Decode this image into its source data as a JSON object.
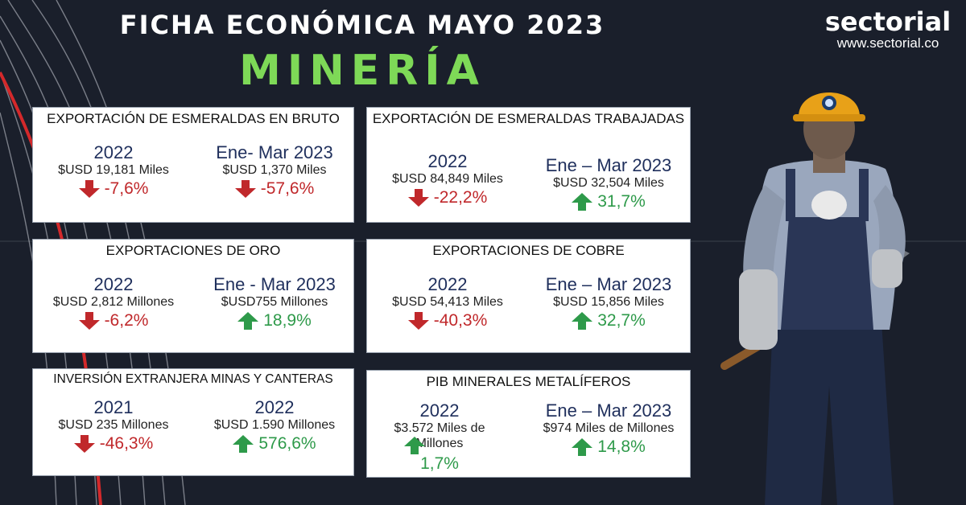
{
  "header": {
    "title": "FICHA ECONÓMICA MAYO 2023",
    "subtitle": "MINERÍA"
  },
  "logo": {
    "word": "sectorial",
    "url": "www.sectorial.co"
  },
  "colors": {
    "background": "#1a1f2b",
    "subtitle_green": "#7ed957",
    "down_red": "#c0282b",
    "up_green": "#2e9a4a",
    "year_navy": "#1f2f5c"
  },
  "cards": [
    {
      "title": "EXPORTACIÓN DE ESMERALDAS EN BRUTO",
      "left": {
        "year": "2022",
        "value": "$USD 19,181 Miles",
        "change": "-7,6%",
        "direction": "down"
      },
      "right": {
        "year": "Ene- Mar 2023",
        "value": "$USD 1,370 Miles",
        "change": "-57,6%",
        "direction": "down"
      }
    },
    {
      "title": "EXPORTACIÓN DE ESMERALDAS TRABAJADAS",
      "left": {
        "year": "2022",
        "value": "$USD 84,849 Miles",
        "change": "-22,2%",
        "direction": "down"
      },
      "right": {
        "year": "Ene – Mar 2023",
        "value": "$USD 32,504 Miles",
        "change": "31,7%",
        "direction": "up"
      }
    },
    {
      "title": "EXPORTACIONES DE ORO",
      "left": {
        "year": "2022",
        "value": "$USD 2,812 Millones",
        "change": "-6,2%",
        "direction": "down"
      },
      "right": {
        "year": "Ene - Mar 2023",
        "value": "$USD755 Millones",
        "change": "18,9%",
        "direction": "up"
      }
    },
    {
      "title": "EXPORTACIONES DE COBRE",
      "left": {
        "year": "2022",
        "value": "$USD 54,413 Miles",
        "change": "-40,3%",
        "direction": "down"
      },
      "right": {
        "year": "Ene – Mar 2023",
        "value": "$USD 15,856 Miles",
        "change": "32,7%",
        "direction": "up"
      }
    },
    {
      "title": "INVERSIÓN EXTRANJERA MINAS Y CANTERAS",
      "left": {
        "year": "2021",
        "value": "$USD 235 Millones",
        "change": "-46,3%",
        "direction": "down"
      },
      "right": {
        "year": "2022",
        "value": "$USD 1.590 Millones",
        "change": "576,6%",
        "direction": "up"
      }
    },
    {
      "title": "PIB MINERALES METALÍFEROS",
      "left": {
        "year": "2022",
        "value": "$3.572 Miles de Millones",
        "change": "1,7%",
        "direction": "up"
      },
      "right": {
        "year": "Ene – Mar 2023",
        "value": "$974 Miles de Millones",
        "change": "14,8%",
        "direction": "up"
      }
    }
  ]
}
